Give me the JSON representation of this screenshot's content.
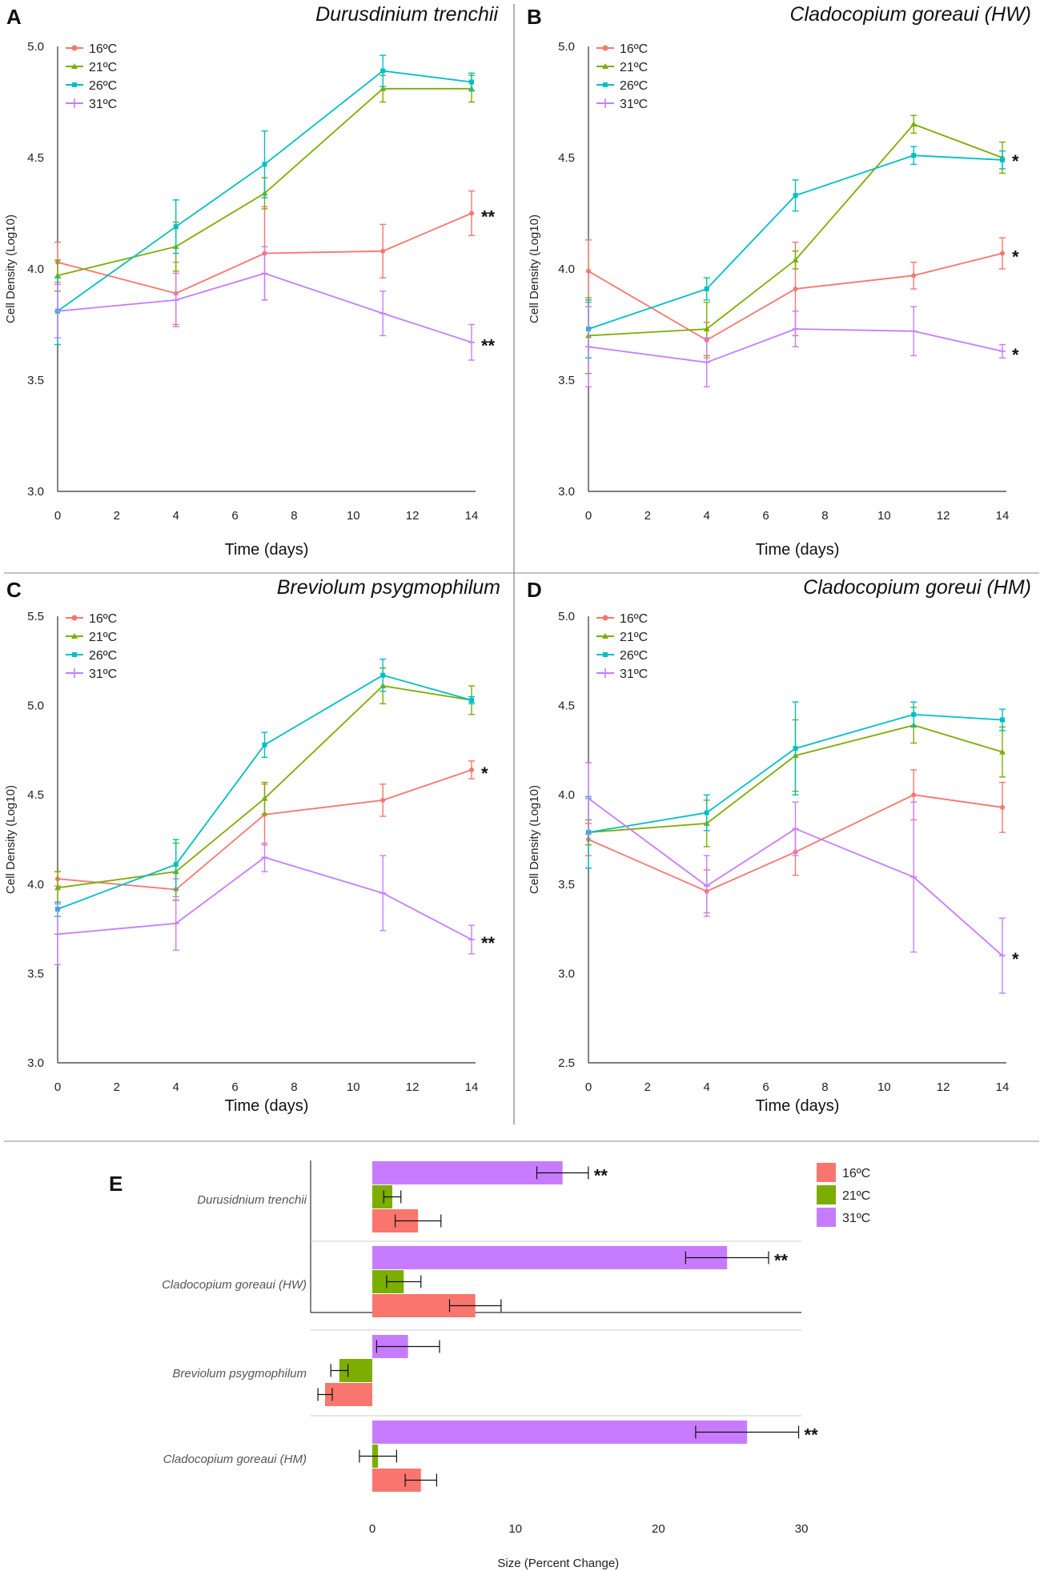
{
  "colors": {
    "16": "#f8766d",
    "21": "#7cae00",
    "26": "#00bfc4",
    "31": "#c77cff"
  },
  "chart_data": [
    {
      "panel": "A",
      "type": "line",
      "title": "Durusdinium trenchii",
      "xlabel": "Time (days)",
      "ylabel": "Cell Density (Log10)",
      "xlim": [
        0,
        14
      ],
      "xticks": [
        "0",
        "2",
        "4",
        "6",
        "8",
        "10",
        "12",
        "14"
      ],
      "ylim": [
        3.0,
        5.0
      ],
      "yticks": [
        "3.0",
        "3.5",
        "4.0",
        "4.5",
        "5.0"
      ],
      "x": [
        0,
        4,
        7,
        11,
        14
      ],
      "series": [
        {
          "name": "16ºC",
          "key": "16",
          "values": [
            4.03,
            3.89,
            4.07,
            4.08,
            4.25
          ],
          "errors": [
            0.09,
            0.14,
            0.21,
            0.12,
            0.1
          ],
          "star": "**"
        },
        {
          "name": "21ºC",
          "key": "21",
          "values": [
            3.97,
            4.1,
            4.34,
            4.81,
            4.81
          ],
          "errors": [
            0.07,
            0.11,
            0.07,
            0.06,
            0.06
          ],
          "star": ""
        },
        {
          "name": "26ºC",
          "key": "26",
          "values": [
            3.81,
            4.19,
            4.47,
            4.89,
            4.84
          ],
          "errors": [
            0.15,
            0.12,
            0.15,
            0.07,
            0.04
          ],
          "star": ""
        },
        {
          "name": "31ºC",
          "key": "31",
          "values": [
            3.81,
            3.86,
            3.98,
            3.8,
            3.67
          ],
          "errors": [
            0.12,
            0.12,
            0.12,
            0.1,
            0.08
          ],
          "star": "**"
        }
      ]
    },
    {
      "panel": "B",
      "type": "line",
      "title": "Cladocopium goreaui (HW)",
      "xlabel": "Time (days)",
      "ylabel": "Cell Density (Log10)",
      "xlim": [
        0,
        14
      ],
      "xticks": [
        "0",
        "2",
        "4",
        "6",
        "8",
        "10",
        "12",
        "14"
      ],
      "ylim": [
        3.0,
        5.0
      ],
      "yticks": [
        "3.0",
        "3.5",
        "4.0",
        "4.5",
        "5.0"
      ],
      "x": [
        0,
        4,
        7,
        11,
        14
      ],
      "series": [
        {
          "name": "16ºC",
          "key": "16",
          "values": [
            3.99,
            3.68,
            3.91,
            3.97,
            4.07
          ],
          "errors": [
            0.14,
            0.08,
            0.21,
            0.06,
            0.07
          ],
          "star": "*"
        },
        {
          "name": "21ºC",
          "key": "21",
          "values": [
            3.7,
            3.73,
            4.04,
            4.65,
            4.5
          ],
          "errors": [
            0.17,
            0.12,
            0.04,
            0.04,
            0.07
          ],
          "star": "*"
        },
        {
          "name": "26ºC",
          "key": "26",
          "values": [
            3.73,
            3.91,
            4.33,
            4.51,
            4.49
          ],
          "errors": [
            0.13,
            0.05,
            0.07,
            0.04,
            0.04
          ],
          "star": ""
        },
        {
          "name": "31ºC",
          "key": "31",
          "values": [
            3.65,
            3.58,
            3.73,
            3.72,
            3.63
          ],
          "errors": [
            0.18,
            0.11,
            0.08,
            0.11,
            0.03
          ],
          "star": "*"
        }
      ]
    },
    {
      "panel": "C",
      "type": "line",
      "title": "Breviolum psygmophilum",
      "xlabel": "Time (days)",
      "ylabel": "Cell Density (Log10)",
      "xlim": [
        0,
        14
      ],
      "xticks": [
        "0",
        "2",
        "4",
        "6",
        "8",
        "10",
        "12",
        "14"
      ],
      "ylim": [
        3.0,
        5.5
      ],
      "yticks": [
        "3.0",
        "3.5",
        "4.0",
        "4.5",
        "5.0",
        "5.5"
      ],
      "x": [
        0,
        4,
        7,
        11,
        14
      ],
      "series": [
        {
          "name": "16ºC",
          "key": "16",
          "values": [
            4.03,
            3.97,
            4.39,
            4.47,
            4.64
          ],
          "errors": [
            0.04,
            0.06,
            0.17,
            0.09,
            0.05
          ],
          "star": "*"
        },
        {
          "name": "21ºC",
          "key": "21",
          "values": [
            3.98,
            4.07,
            4.48,
            5.11,
            5.03
          ],
          "errors": [
            0.09,
            0.16,
            0.09,
            0.1,
            0.08
          ],
          "star": ""
        },
        {
          "name": "26ºC",
          "key": "26",
          "values": [
            3.86,
            4.11,
            4.78,
            5.17,
            5.03
          ],
          "errors": [
            0.04,
            0.14,
            0.07,
            0.09,
            0.02
          ],
          "star": ""
        },
        {
          "name": "31ºC",
          "key": "31",
          "values": [
            3.72,
            3.78,
            4.15,
            3.95,
            3.69
          ],
          "errors": [
            0.17,
            0.15,
            0.08,
            0.21,
            0.08
          ],
          "star": "**"
        }
      ]
    },
    {
      "panel": "D",
      "type": "line",
      "title": "Cladocopium goreui (HM)",
      "xlabel": "Time (days)",
      "ylabel": "Cell Density (Log10)",
      "xlim": [
        0,
        14
      ],
      "xticks": [
        "0",
        "2",
        "4",
        "6",
        "8",
        "10",
        "12",
        "14"
      ],
      "ylim": [
        2.5,
        5.0
      ],
      "yticks": [
        "2.5",
        "3.0",
        "3.5",
        "4.0",
        "4.5",
        "5.0"
      ],
      "x": [
        0,
        4,
        7,
        11,
        14
      ],
      "series": [
        {
          "name": "16ºC",
          "key": "16",
          "values": [
            3.75,
            3.46,
            3.68,
            4.0,
            3.93
          ],
          "errors": [
            0.09,
            0.12,
            0.13,
            0.14,
            0.14
          ],
          "star": ""
        },
        {
          "name": "21ºC",
          "key": "21",
          "values": [
            3.79,
            3.84,
            4.22,
            4.39,
            4.24
          ],
          "errors": [
            0.07,
            0.13,
            0.2,
            0.1,
            0.14
          ],
          "star": ""
        },
        {
          "name": "26ºC",
          "key": "26",
          "values": [
            3.79,
            3.9,
            4.26,
            4.45,
            4.42
          ],
          "errors": [
            0.2,
            0.1,
            0.26,
            0.07,
            0.06
          ],
          "star": ""
        },
        {
          "name": "31ºC",
          "key": "31",
          "values": [
            3.98,
            3.49,
            3.81,
            3.54,
            3.1
          ],
          "errors": [
            0.2,
            0.17,
            0.15,
            0.42,
            0.21
          ],
          "star": "*"
        }
      ]
    },
    {
      "panel": "E",
      "type": "bar",
      "orientation": "horizontal",
      "xlabel": "Size (Percent Change)",
      "xlim": [
        -4,
        30
      ],
      "xticks": [
        "0",
        "10",
        "20",
        "30"
      ],
      "categories": [
        "Durusidnium trenchii",
        "Cladocopium goreaui (HW)",
        "Breviolum psygmophilum",
        "Cladocopium goreaui (HM)"
      ],
      "legend": [
        "16ºC",
        "21ºC",
        "31ºC"
      ],
      "series": [
        {
          "name": "16ºC",
          "key": "16",
          "values": [
            3.2,
            7.2,
            -3.3,
            3.4
          ],
          "errors": [
            1.6,
            1.8,
            0.5,
            1.1
          ]
        },
        {
          "name": "21ºC",
          "key": "21",
          "values": [
            1.4,
            2.2,
            -2.3,
            0.4
          ],
          "errors": [
            0.6,
            1.2,
            0.6,
            1.3
          ]
        },
        {
          "name": "31ºC",
          "key": "31",
          "values": [
            13.3,
            24.8,
            2.5,
            26.2
          ],
          "errors": [
            1.8,
            2.9,
            2.2,
            3.6
          ]
        }
      ],
      "stars": [
        "**",
        "**",
        "",
        "**"
      ]
    }
  ]
}
